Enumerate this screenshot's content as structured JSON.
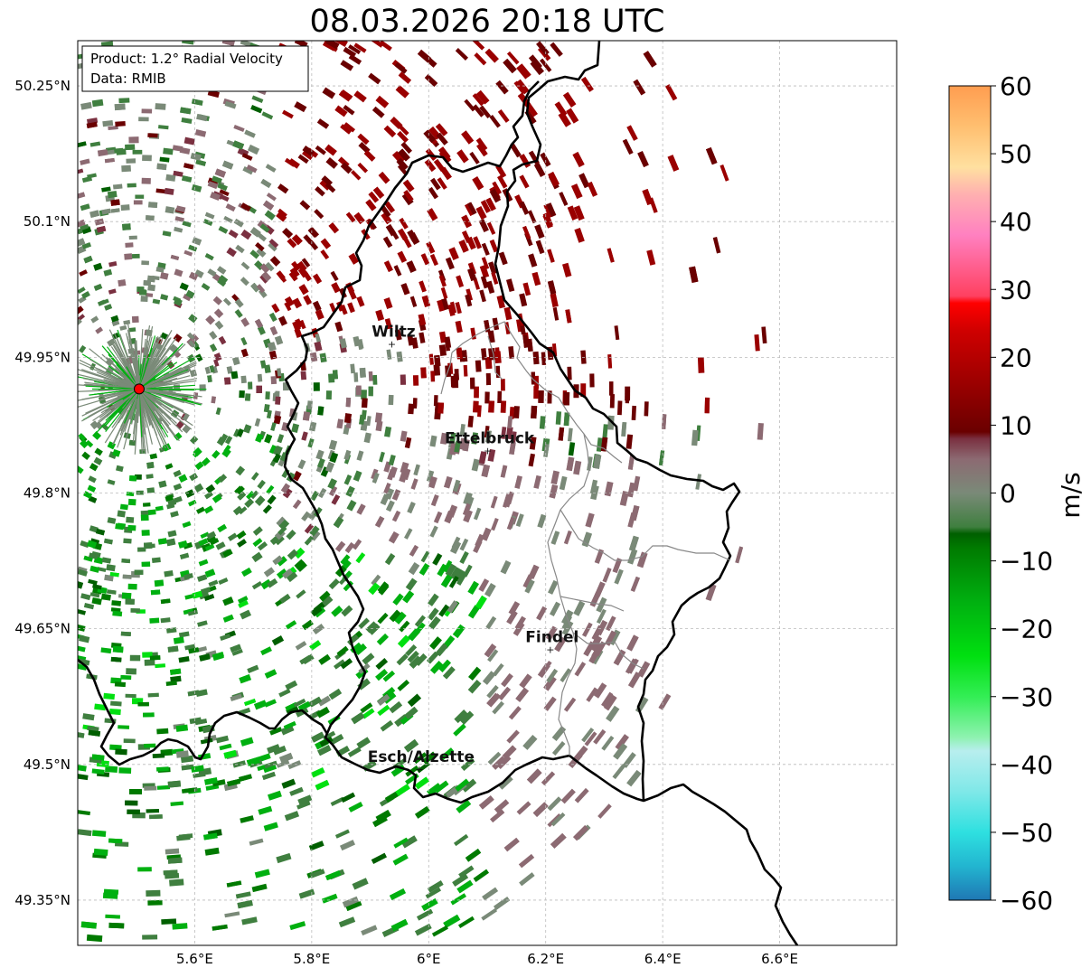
{
  "title": "08.03.2026 20:18 UTC",
  "info": {
    "product": "Product: 1.2° Radial Velocity",
    "source": "Data: RMIB"
  },
  "map": {
    "lon_range": [
      5.4,
      6.8
    ],
    "lat_range": [
      49.3,
      50.3
    ],
    "lat_ticks": [
      {
        "value": 50.25,
        "label": "50.25°N"
      },
      {
        "value": 50.1,
        "label": "50.1°N"
      },
      {
        "value": 49.95,
        "label": "49.95°N"
      },
      {
        "value": 49.8,
        "label": "49.8°N"
      },
      {
        "value": 49.65,
        "label": "49.65°N"
      },
      {
        "value": 49.5,
        "label": "49.5°N"
      },
      {
        "value": 49.35,
        "label": "49.35°N"
      }
    ],
    "lon_ticks": [
      {
        "value": 5.6,
        "label": "5.6°E"
      },
      {
        "value": 5.8,
        "label": "5.8°E"
      },
      {
        "value": 6.0,
        "label": "6°E"
      },
      {
        "value": 6.2,
        "label": "6.2°E"
      },
      {
        "value": 6.4,
        "label": "6.4°E"
      },
      {
        "value": 6.6,
        "label": "6.6°E"
      }
    ],
    "radar_site": {
      "lon": 5.505,
      "lat": 49.915
    },
    "cities": [
      {
        "name": "Wiltz",
        "lon": 5.94,
        "lat": 49.965
      },
      {
        "name": "Ettelbruck",
        "lon": 6.104,
        "lat": 49.847
      },
      {
        "name": "Findel",
        "lon": 6.211,
        "lat": 49.627
      },
      {
        "name": "Esch/Alzette",
        "lon": 5.987,
        "lat": 49.495
      }
    ]
  },
  "colorbar": {
    "label": "m/s",
    "min": -60,
    "max": 60,
    "ticks": [
      {
        "value": 60,
        "label": "60"
      },
      {
        "value": 50,
        "label": "50"
      },
      {
        "value": 40,
        "label": "40"
      },
      {
        "value": 30,
        "label": "30"
      },
      {
        "value": 20,
        "label": "20"
      },
      {
        "value": 10,
        "label": "10"
      },
      {
        "value": 0,
        "label": "0"
      },
      {
        "value": -10,
        "label": "−10"
      },
      {
        "value": -20,
        "label": "−20"
      },
      {
        "value": -30,
        "label": "−30"
      },
      {
        "value": -40,
        "label": "−40"
      },
      {
        "value": -50,
        "label": "−50"
      },
      {
        "value": -60,
        "label": "−60"
      }
    ],
    "stops": [
      {
        "value": -60,
        "color": "#1f77b4"
      },
      {
        "value": -55,
        "color": "#22b5d0"
      },
      {
        "value": -50,
        "color": "#2ee0e0"
      },
      {
        "value": -44,
        "color": "#7fe8e8"
      },
      {
        "value": -38,
        "color": "#b8eeee"
      },
      {
        "value": -36,
        "color": "#8ef2b0"
      },
      {
        "value": -30,
        "color": "#33ee55"
      },
      {
        "value": -24,
        "color": "#00e010"
      },
      {
        "value": -16,
        "color": "#00b010"
      },
      {
        "value": -8,
        "color": "#007a00"
      },
      {
        "value": -6,
        "color": "#005f00"
      },
      {
        "value": -5,
        "color": "#3f7f3f"
      },
      {
        "value": 0,
        "color": "#7a8a78"
      },
      {
        "value": 5,
        "color": "#8c6a72"
      },
      {
        "value": 8,
        "color": "#7a3040"
      },
      {
        "value": 9,
        "color": "#6a0000"
      },
      {
        "value": 16,
        "color": "#9a0000"
      },
      {
        "value": 24,
        "color": "#d00000"
      },
      {
        "value": 28,
        "color": "#ff0000"
      },
      {
        "value": 29,
        "color": "#ff4060"
      },
      {
        "value": 38,
        "color": "#ff80c0"
      },
      {
        "value": 44,
        "color": "#ffb0b0"
      },
      {
        "value": 48,
        "color": "#ffe0a0"
      },
      {
        "value": 54,
        "color": "#ffbf70"
      },
      {
        "value": 60,
        "color": "#ff9d50"
      }
    ]
  },
  "colors": {
    "border": "#000000",
    "district": "#888888",
    "grid": "#bbbbbb",
    "radar_marker": "#ff0000"
  }
}
